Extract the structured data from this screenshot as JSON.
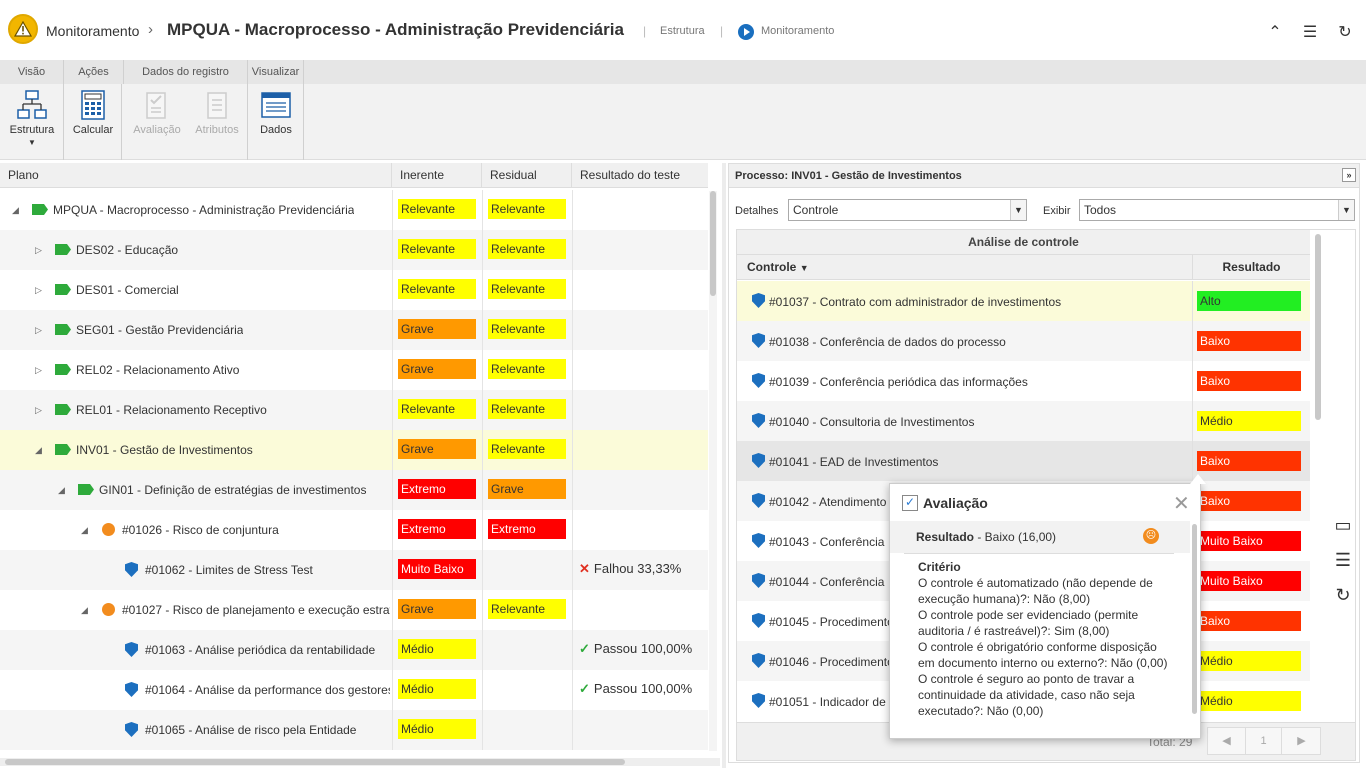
{
  "header": {
    "breadcrumb_root": "Monitoramento",
    "separator": "›",
    "title": "MPQUA - Macroprocesso - Administração Previdenciária",
    "link_structure": "Estrutura",
    "link_monitor": "Monitoramento"
  },
  "ribbon": {
    "tabs": [
      "Visão",
      "Ações",
      "Dados do registro",
      "Visualizar"
    ],
    "buttons": {
      "estrutura": "Estrutura",
      "calcular": "Calcular",
      "avaliacao": "Avaliação",
      "atributos": "Atributos",
      "dados": "Dados"
    }
  },
  "plan": {
    "columns": [
      "Plano",
      "Inerente",
      "Residual",
      "Resultado do teste"
    ],
    "rows": [
      {
        "name": "MPQUA - Macroprocesso - Administração Previdenciária",
        "inerente": "Relevante",
        "residual": "Relevante",
        "teste": ""
      },
      {
        "name": "DES02 - Educação",
        "inerente": "Relevante",
        "residual": "Relevante",
        "teste": ""
      },
      {
        "name": "DES01 - Comercial",
        "inerente": "Relevante",
        "residual": "Relevante",
        "teste": ""
      },
      {
        "name": "SEG01 - Gestão Previdenciária",
        "inerente": "Grave",
        "residual": "Relevante",
        "teste": ""
      },
      {
        "name": "REL02 - Relacionamento Ativo",
        "inerente": "Grave",
        "residual": "Relevante",
        "teste": ""
      },
      {
        "name": "REL01 - Relacionamento Receptivo",
        "inerente": "Relevante",
        "residual": "Relevante",
        "teste": ""
      },
      {
        "name": "INV01 - Gestão de Investimentos",
        "inerente": "Grave",
        "residual": "Relevante",
        "teste": ""
      },
      {
        "name": "GIN01 - Definição de estratégias de investimentos",
        "inerente": "Extremo",
        "residual": "Grave",
        "teste": ""
      },
      {
        "name": "#01026 - Risco de conjuntura",
        "inerente": "Extremo",
        "residual": "Extremo",
        "teste": ""
      },
      {
        "name": "#01062 - Limites de Stress Test",
        "inerente": "Muito Baixo",
        "residual": "",
        "teste": "Falhou 33,33%"
      },
      {
        "name": "#01027 - Risco de planejamento e execução estratégica",
        "inerente": "Grave",
        "residual": "Relevante",
        "teste": ""
      },
      {
        "name": "#01063 - Análise periódica da rentabilidade",
        "inerente": "Médio",
        "residual": "",
        "teste": "Passou 100,00%"
      },
      {
        "name": "#01064 - Análise da performance dos gestores",
        "inerente": "Médio",
        "residual": "",
        "teste": "Passou 100,00%"
      },
      {
        "name": "#01065 - Análise de risco pela Entidade",
        "inerente": "Médio",
        "residual": "",
        "teste": ""
      }
    ]
  },
  "process": {
    "title": "Processo: INV01 - Gestão de Investimentos",
    "detalhes_label": "Detalhes",
    "detalhes_value": "Controle",
    "exibir_label": "Exibir",
    "exibir_value": "Todos",
    "grid_title": "Análise de controle",
    "col_controle": "Controle",
    "col_resultado": "Resultado",
    "rows": [
      {
        "name": "#01037 - Contrato com administrador de investimentos",
        "resultado": "Alto"
      },
      {
        "name": "#01038 - Conferência de dados do processo",
        "resultado": "Baixo"
      },
      {
        "name": "#01039 - Conferência periódica das informações",
        "resultado": "Baixo"
      },
      {
        "name": "#01040 - Consultoria de Investimentos",
        "resultado": "Médio"
      },
      {
        "name": "#01041 - EAD de Investimentos",
        "resultado": "Baixo"
      },
      {
        "name": "#01042 - Atendimento",
        "resultado": "Baixo"
      },
      {
        "name": "#01043 - Conferência",
        "resultado": "Muito Baixo"
      },
      {
        "name": "#01044 - Conferência",
        "resultado": "Muito Baixo"
      },
      {
        "name": "#01045 - Procedimento",
        "resultado": "Baixo"
      },
      {
        "name": "#01046 - Procedimento",
        "resultado": "Médio"
      },
      {
        "name": "#01051 - Indicador de",
        "resultado": "Médio"
      }
    ],
    "total": "Total: 29",
    "page": "1"
  },
  "popup": {
    "title": "Avaliação",
    "resultado_label": "Resultado",
    "resultado_value": " - Baixo (16,00)",
    "criterio": "Critério",
    "lines": [
      "O controle é automatizado (não depende de execução humana)?: Não (8,00)",
      "O controle pode ser evidenciado (permite auditoria / é rastreável)?: Sim (8,00)",
      "O controle é obrigatório conforme disposição em documento interno ou externo?: Não (0,00)",
      "O controle é seguro ao ponto de travar a continuidade da atividade, caso não seja executado?: Não (0,00)"
    ]
  },
  "colors": {
    "Relevante": "#ffff00",
    "Grave": "#ff9900",
    "Extremo": "#ff0000",
    "Muito Baixo": "#ff0000",
    "Médio": "#ffff00",
    "Alto": "#22ee22",
    "Baixo": "#ff3300"
  }
}
